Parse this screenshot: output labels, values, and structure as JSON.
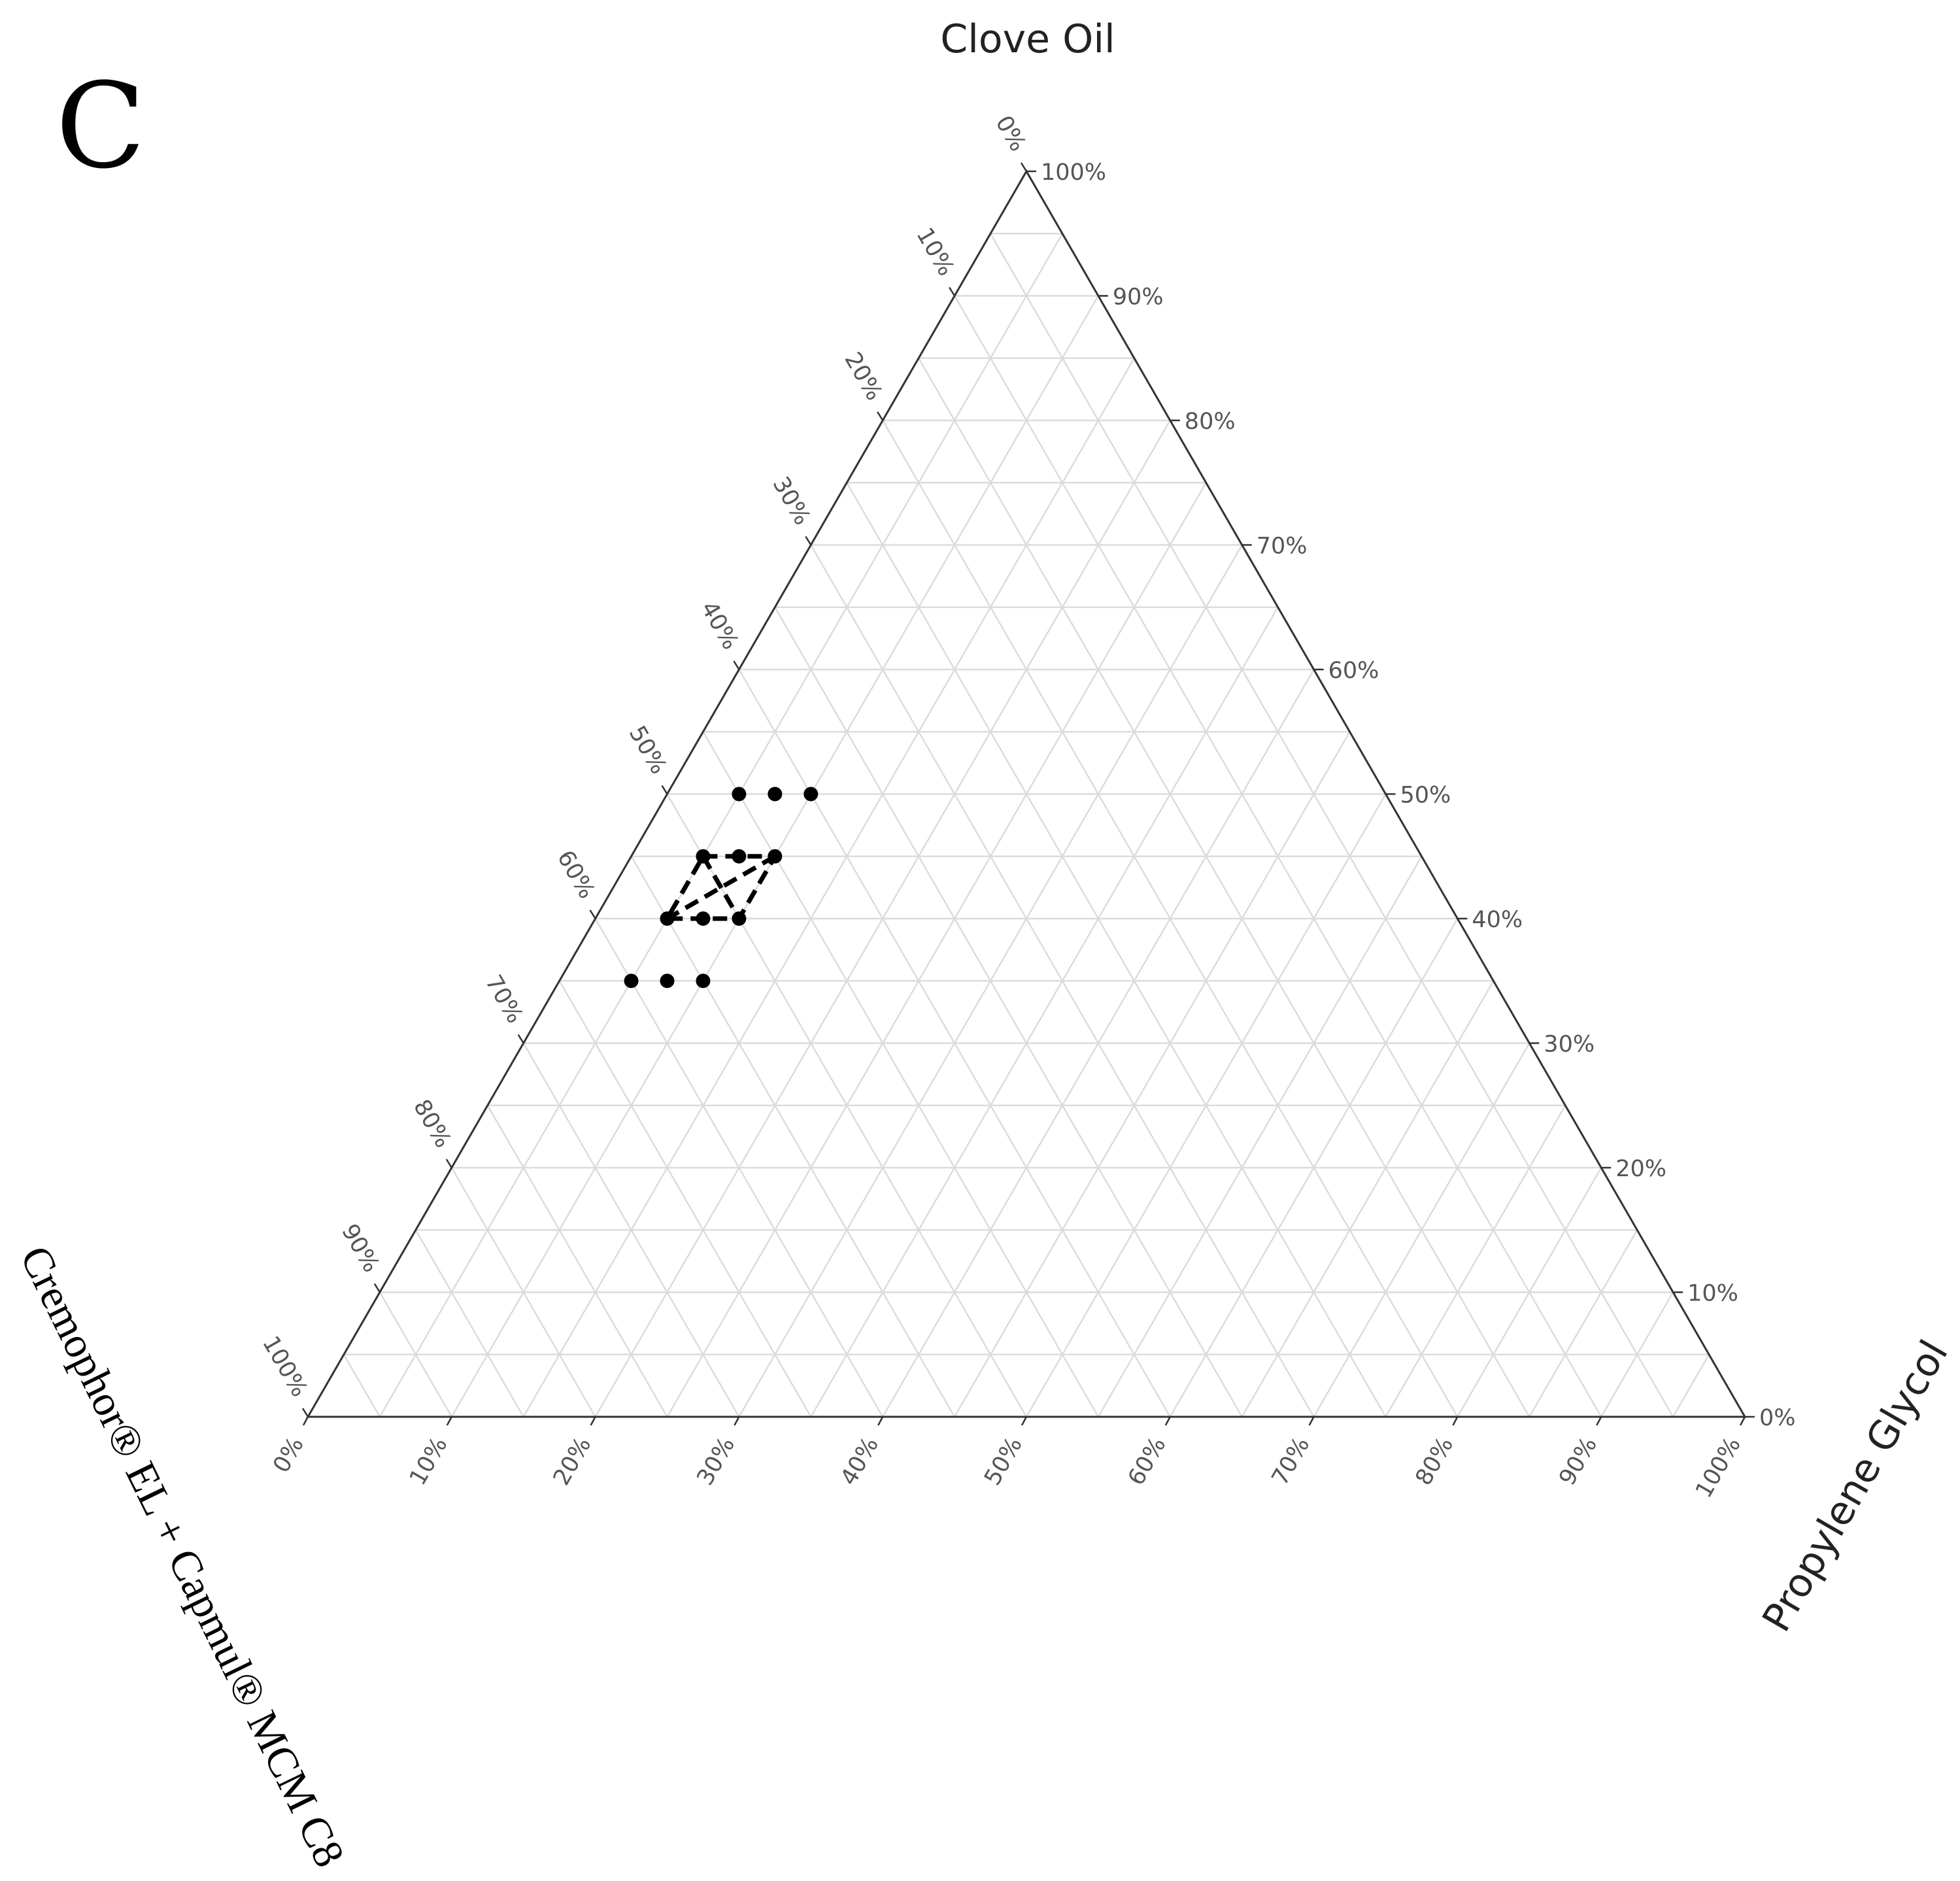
{
  "panel_label": "C",
  "chart_data": {
    "type": "ternary",
    "axes": {
      "top": "Clove Oil",
      "left": "Cremophor® EL + Capmul® MCM C8",
      "right": "Propylene Glycol"
    },
    "ticks": [
      "0%",
      "10%",
      "20%",
      "30%",
      "40%",
      "50%",
      "60%",
      "70%",
      "80%",
      "90%",
      "100%"
    ],
    "grid": true,
    "grid_step": 5,
    "points": [
      {
        "clove_oil": 50,
        "surfactant_mix": 45,
        "propylene_glycol": 5
      },
      {
        "clove_oil": 50,
        "surfactant_mix": 42.5,
        "propylene_glycol": 7.5
      },
      {
        "clove_oil": 50,
        "surfactant_mix": 40,
        "propylene_glycol": 10
      },
      {
        "clove_oil": 45,
        "surfactant_mix": 50,
        "propylene_glycol": 5
      },
      {
        "clove_oil": 45,
        "surfactant_mix": 47.5,
        "propylene_glycol": 7.5
      },
      {
        "clove_oil": 45,
        "surfactant_mix": 45,
        "propylene_glycol": 10
      },
      {
        "clove_oil": 40,
        "surfactant_mix": 55,
        "propylene_glycol": 5
      },
      {
        "clove_oil": 40,
        "surfactant_mix": 52.5,
        "propylene_glycol": 7.5
      },
      {
        "clove_oil": 40,
        "surfactant_mix": 50,
        "propylene_glycol": 10
      },
      {
        "clove_oil": 35,
        "surfactant_mix": 60,
        "propylene_glycol": 5
      },
      {
        "clove_oil": 35,
        "surfactant_mix": 57.5,
        "propylene_glycol": 7.5
      },
      {
        "clove_oil": 35,
        "surfactant_mix": 55,
        "propylene_glycol": 10
      }
    ],
    "region": [
      {
        "clove_oil": 45,
        "surfactant_mix": 50,
        "propylene_glycol": 5
      },
      {
        "clove_oil": 45,
        "surfactant_mix": 45,
        "propylene_glycol": 10
      },
      {
        "clove_oil": 40,
        "surfactant_mix": 50,
        "propylene_glycol": 10
      },
      {
        "clove_oil": 40,
        "surfactant_mix": 55,
        "propylene_glycol": 5
      }
    ],
    "region_diagonals": [
      [
        {
          "clove_oil": 45,
          "surfactant_mix": 50,
          "propylene_glycol": 5
        },
        {
          "clove_oil": 40,
          "surfactant_mix": 50,
          "propylene_glycol": 10
        }
      ],
      [
        {
          "clove_oil": 45,
          "surfactant_mix": 45,
          "propylene_glycol": 10
        },
        {
          "clove_oil": 40,
          "surfactant_mix": 55,
          "propylene_glycol": 5
        }
      ]
    ],
    "colors": {
      "grid": "#dcdcdc",
      "axis": "#333333",
      "points": "#000000"
    }
  }
}
